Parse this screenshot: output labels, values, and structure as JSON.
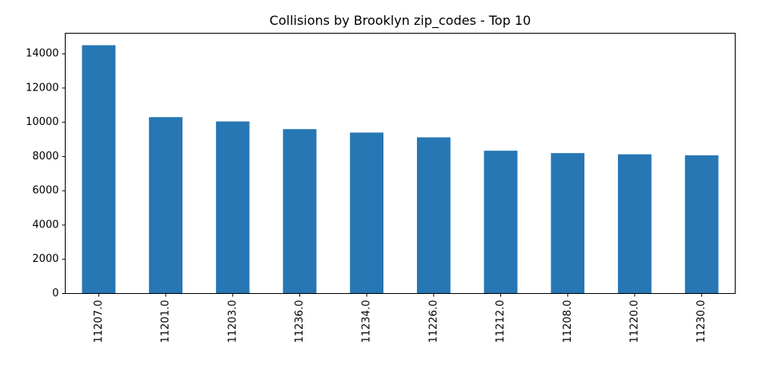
{
  "chart_data": {
    "type": "bar",
    "title": "Collisions by Brooklyn zip_codes - Top 10",
    "xlabel": "",
    "ylabel": "",
    "categories": [
      "11207.0",
      "11201.0",
      "11203.0",
      "11236.0",
      "11234.0",
      "11226.0",
      "11212.0",
      "11208.0",
      "11220.0",
      "11230.0"
    ],
    "values": [
      14500,
      10300,
      10050,
      9600,
      9400,
      9120,
      8340,
      8200,
      8130,
      8070
    ],
    "yticks": [
      0,
      2000,
      4000,
      6000,
      8000,
      10000,
      12000,
      14000
    ],
    "ylim": [
      0,
      15200
    ],
    "grid": false,
    "bar_color": "#2677b4"
  }
}
